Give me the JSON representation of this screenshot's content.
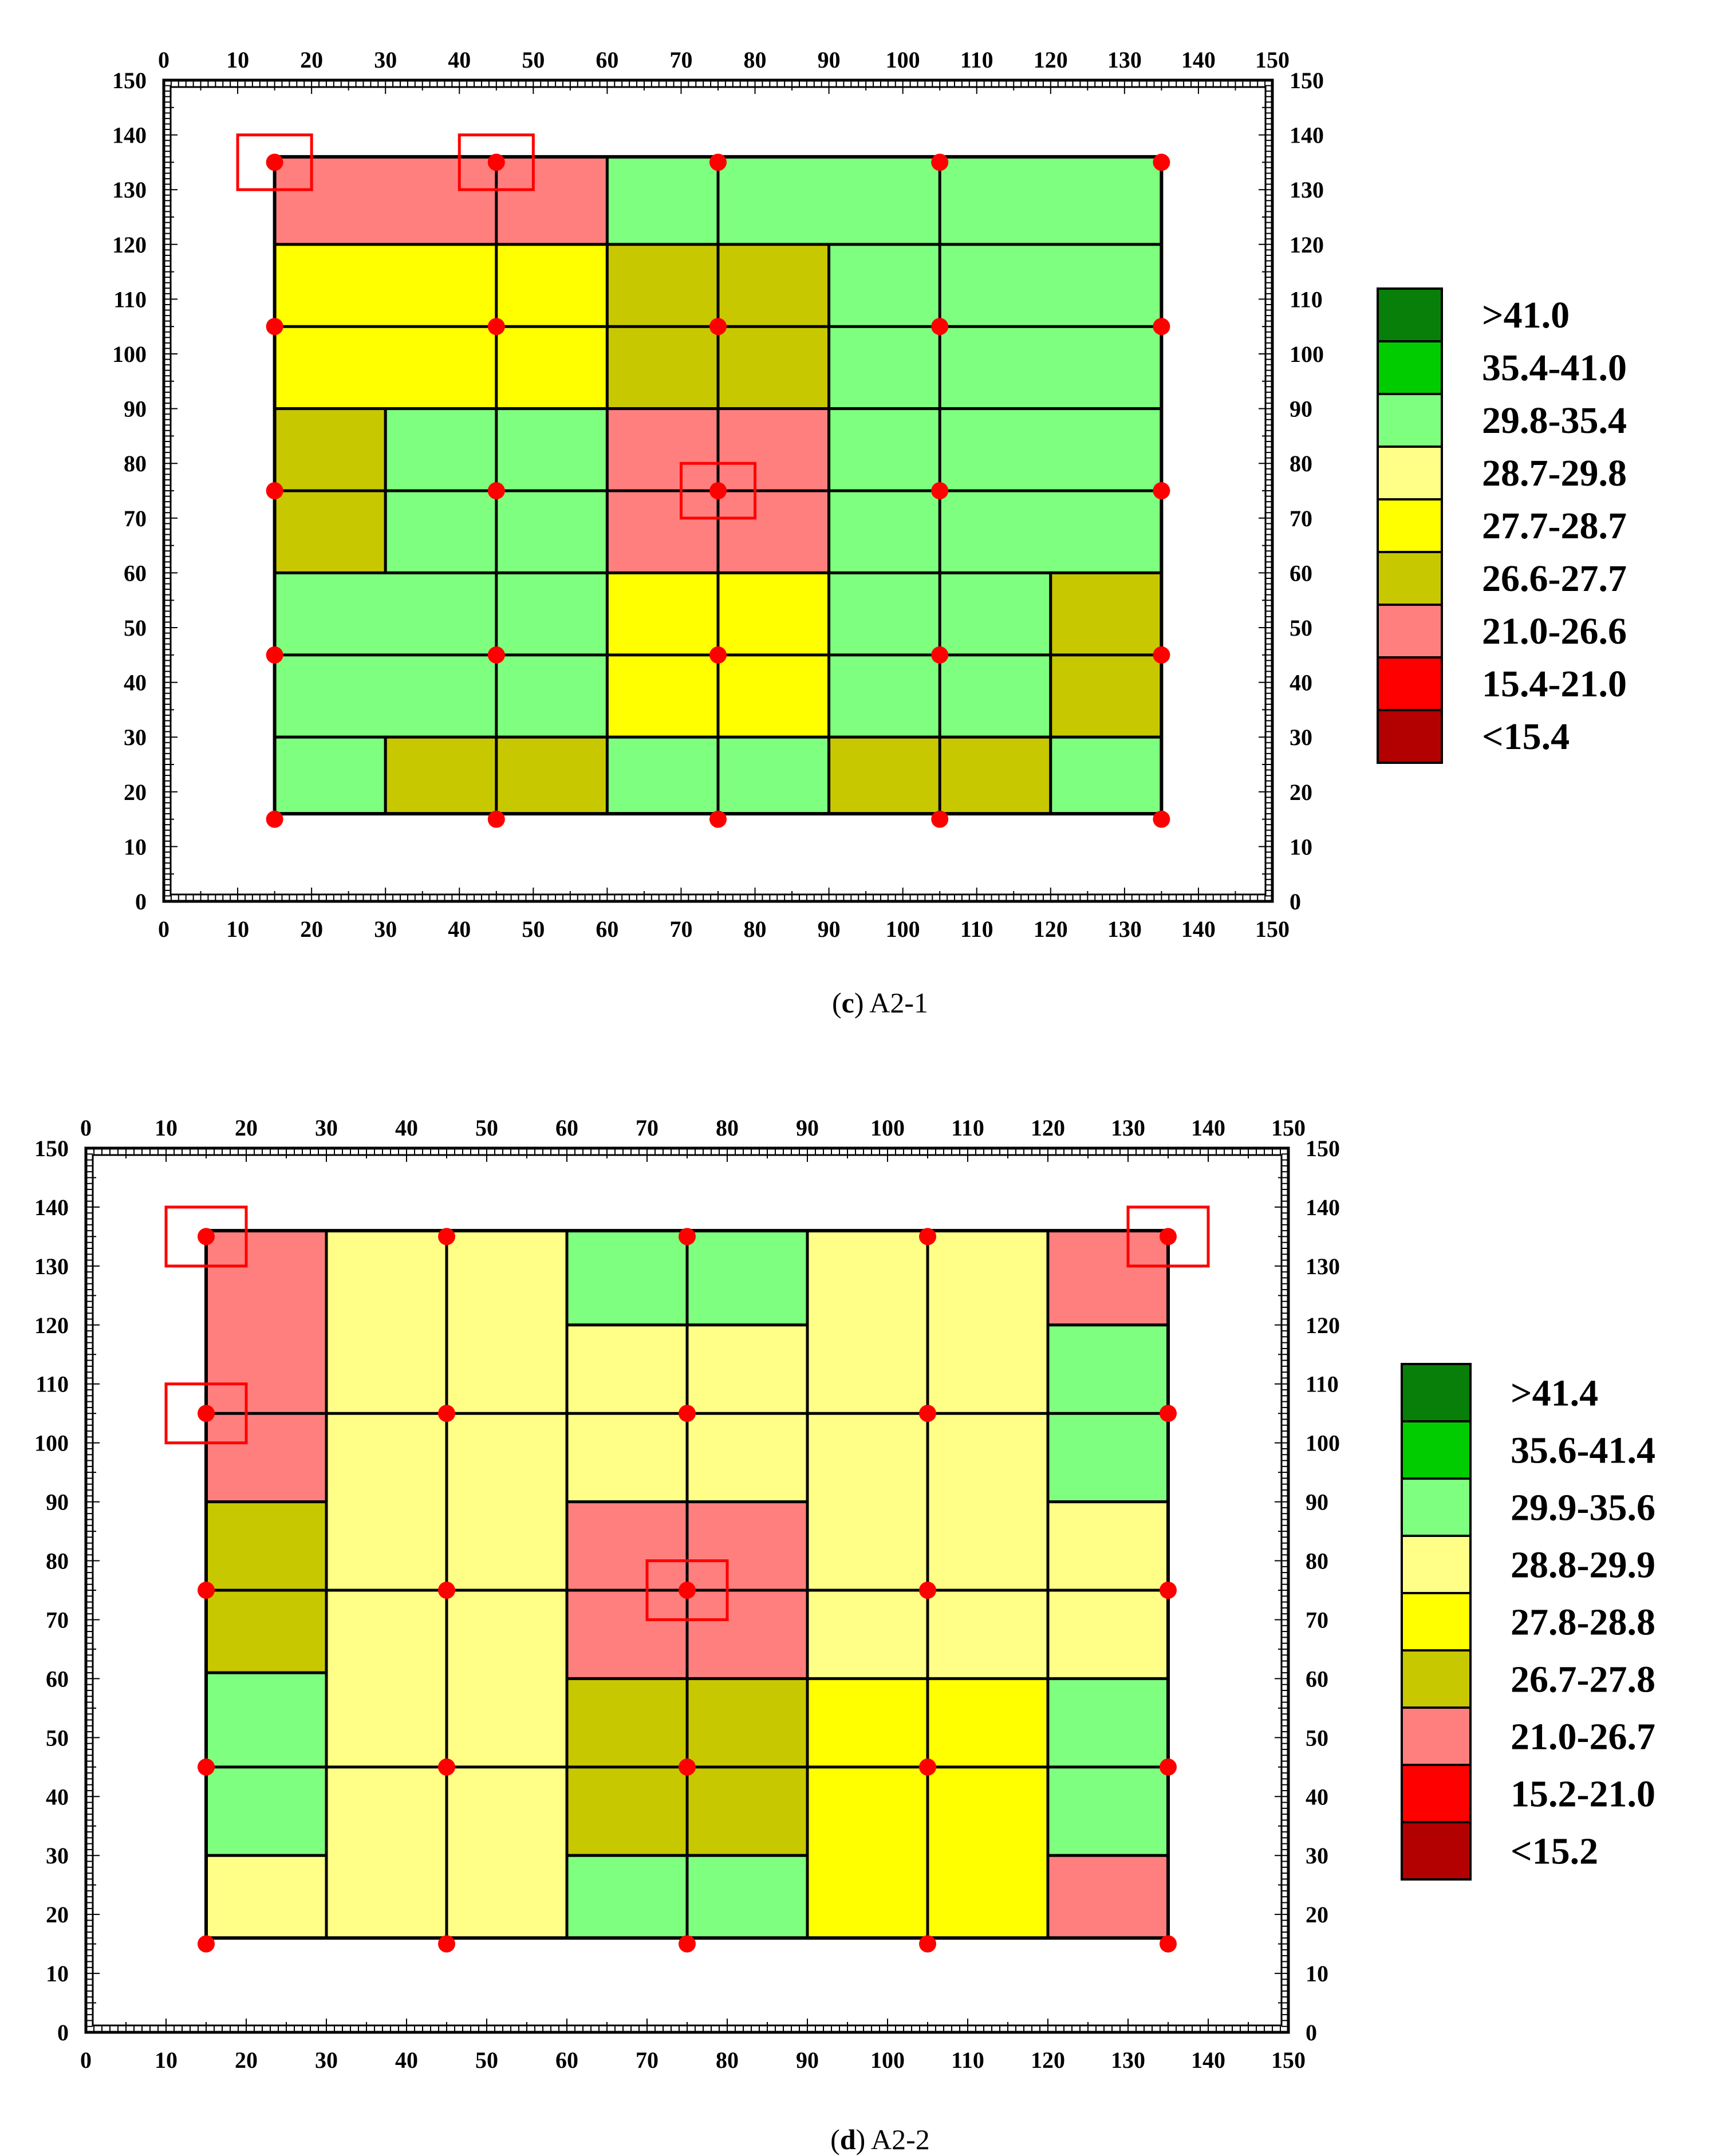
{
  "chart_data": [
    {
      "type": "heatmap",
      "panel_letter": "c",
      "caption": "A2-1",
      "xlim": [
        0,
        150
      ],
      "ylim": [
        0,
        150
      ],
      "ticks": [
        0,
        10,
        20,
        30,
        40,
        50,
        60,
        70,
        80,
        90,
        100,
        110,
        120,
        130,
        140,
        150
      ],
      "legend": [
        {
          "label": ">41.0",
          "color": "#087f08"
        },
        {
          "label": "35.4-41.0",
          "color": "#00cc00"
        },
        {
          "label": "29.8-35.4",
          "color": "#7fff7f"
        },
        {
          "label": "28.7-29.8",
          "color": "#ffff88"
        },
        {
          "label": "27.7-28.7",
          "color": "#ffff00"
        },
        {
          "label": "26.6-27.7",
          "color": "#c8c800"
        },
        {
          "label": "21.0-26.6",
          "color": "#ff7f7f"
        },
        {
          "label": "15.4-21.0",
          "color": "#ff0000"
        },
        {
          "label": "<15.4",
          "color": "#b30000"
        }
      ],
      "cells": [
        {
          "x0": 15,
          "x1": 60,
          "y0": 120,
          "y1": 136,
          "range": "21.0-26.6"
        },
        {
          "x0": 60,
          "x1": 135,
          "y0": 120,
          "y1": 136,
          "range": "29.8-35.4"
        },
        {
          "x0": 15,
          "x1": 60,
          "y0": 90,
          "y1": 120,
          "range": "27.7-28.7"
        },
        {
          "x0": 60,
          "x1": 90,
          "y0": 90,
          "y1": 120,
          "range": "26.6-27.7"
        },
        {
          "x0": 90,
          "x1": 135,
          "y0": 90,
          "y1": 120,
          "range": "29.8-35.4"
        },
        {
          "x0": 15,
          "x1": 30,
          "y0": 60,
          "y1": 90,
          "range": "26.6-27.7"
        },
        {
          "x0": 30,
          "x1": 60,
          "y0": 60,
          "y1": 90,
          "range": "29.8-35.4"
        },
        {
          "x0": 60,
          "x1": 90,
          "y0": 60,
          "y1": 90,
          "range": "21.0-26.6"
        },
        {
          "x0": 90,
          "x1": 135,
          "y0": 60,
          "y1": 90,
          "range": "29.8-35.4"
        },
        {
          "x0": 15,
          "x1": 60,
          "y0": 30,
          "y1": 60,
          "range": "29.8-35.4"
        },
        {
          "x0": 60,
          "x1": 90,
          "y0": 30,
          "y1": 60,
          "range": "27.7-28.7"
        },
        {
          "x0": 90,
          "x1": 120,
          "y0": 30,
          "y1": 60,
          "range": "29.8-35.4"
        },
        {
          "x0": 120,
          "x1": 135,
          "y0": 30,
          "y1": 60,
          "range": "26.6-27.7"
        },
        {
          "x0": 15,
          "x1": 30,
          "y0": 16,
          "y1": 30,
          "range": "29.8-35.4"
        },
        {
          "x0": 30,
          "x1": 60,
          "y0": 16,
          "y1": 30,
          "range": "26.6-27.7"
        },
        {
          "x0": 60,
          "x1": 90,
          "y0": 16,
          "y1": 30,
          "range": "29.8-35.4"
        },
        {
          "x0": 90,
          "x1": 120,
          "y0": 16,
          "y1": 30,
          "range": "26.6-27.7"
        },
        {
          "x0": 120,
          "x1": 135,
          "y0": 16,
          "y1": 30,
          "range": "29.8-35.4"
        }
      ],
      "grid_lines_x": [
        45,
        75,
        105
      ],
      "grid_lines_y": [
        45,
        75,
        105
      ],
      "points": [
        [
          15,
          135
        ],
        [
          45,
          135
        ],
        [
          75,
          135
        ],
        [
          105,
          135
        ],
        [
          135,
          135
        ],
        [
          15,
          105
        ],
        [
          45,
          105
        ],
        [
          75,
          105
        ],
        [
          105,
          105
        ],
        [
          135,
          105
        ],
        [
          15,
          75
        ],
        [
          45,
          75
        ],
        [
          75,
          75
        ],
        [
          105,
          75
        ],
        [
          135,
          75
        ],
        [
          15,
          45
        ],
        [
          45,
          45
        ],
        [
          75,
          45
        ],
        [
          105,
          45
        ],
        [
          135,
          45
        ],
        [
          15,
          15
        ],
        [
          45,
          15
        ],
        [
          75,
          15
        ],
        [
          105,
          15
        ],
        [
          135,
          15
        ]
      ],
      "marked_points": [
        [
          15,
          135
        ],
        [
          45,
          135
        ],
        [
          75,
          75
        ]
      ]
    },
    {
      "type": "heatmap",
      "panel_letter": "d",
      "caption": "A2-2",
      "xlim": [
        0,
        150
      ],
      "ylim": [
        0,
        150
      ],
      "ticks": [
        0,
        10,
        20,
        30,
        40,
        50,
        60,
        70,
        80,
        90,
        100,
        110,
        120,
        130,
        140,
        150
      ],
      "legend": [
        {
          "label": ">41.4",
          "color": "#087f08"
        },
        {
          "label": "35.6-41.4",
          "color": "#00cc00"
        },
        {
          "label": "29.9-35.6",
          "color": "#7fff7f"
        },
        {
          "label": "28.8-29.9",
          "color": "#ffff88"
        },
        {
          "label": "27.8-28.8",
          "color": "#ffff00"
        },
        {
          "label": "26.7-27.8",
          "color": "#c8c800"
        },
        {
          "label": "21.0-26.7",
          "color": "#ff7f7f"
        },
        {
          "label": "15.2-21.0",
          "color": "#ff0000"
        },
        {
          "label": "<15.2",
          "color": "#b30000"
        }
      ],
      "cells": [
        {
          "x0": 15,
          "x1": 30,
          "y0": 90,
          "y1": 136,
          "range": "21.0-26.7"
        },
        {
          "x0": 30,
          "x1": 60,
          "y0": 16,
          "y1": 136,
          "range": "28.8-29.9"
        },
        {
          "x0": 60,
          "x1": 90,
          "y0": 120,
          "y1": 136,
          "range": "29.9-35.6"
        },
        {
          "x0": 60,
          "x1": 90,
          "y0": 90,
          "y1": 120,
          "range": "28.8-29.9"
        },
        {
          "x0": 90,
          "x1": 120,
          "y0": 60,
          "y1": 136,
          "range": "28.8-29.9"
        },
        {
          "x0": 120,
          "x1": 135,
          "y0": 120,
          "y1": 136,
          "range": "21.0-26.7"
        },
        {
          "x0": 120,
          "x1": 135,
          "y0": 90,
          "y1": 120,
          "range": "29.9-35.6"
        },
        {
          "x0": 15,
          "x1": 30,
          "y0": 61,
          "y1": 90,
          "range": "26.7-27.8"
        },
        {
          "x0": 60,
          "x1": 90,
          "y0": 60,
          "y1": 90,
          "range": "21.0-26.7"
        },
        {
          "x0": 120,
          "x1": 135,
          "y0": 60,
          "y1": 90,
          "range": "28.8-29.9"
        },
        {
          "x0": 15,
          "x1": 30,
          "y0": 30,
          "y1": 61,
          "range": "29.9-35.6"
        },
        {
          "x0": 60,
          "x1": 90,
          "y0": 30,
          "y1": 60,
          "range": "26.7-27.8"
        },
        {
          "x0": 90,
          "x1": 120,
          "y0": 16,
          "y1": 60,
          "range": "27.8-28.8"
        },
        {
          "x0": 120,
          "x1": 135,
          "y0": 30,
          "y1": 60,
          "range": "29.9-35.6"
        },
        {
          "x0": 15,
          "x1": 30,
          "y0": 16,
          "y1": 30,
          "range": "28.8-29.9"
        },
        {
          "x0": 60,
          "x1": 90,
          "y0": 16,
          "y1": 30,
          "range": "29.9-35.6"
        },
        {
          "x0": 120,
          "x1": 135,
          "y0": 16,
          "y1": 30,
          "range": "21.0-26.7"
        }
      ],
      "grid_lines_x": [
        45,
        75,
        105
      ],
      "grid_lines_y": [
        45,
        75,
        105
      ],
      "points": [
        [
          15,
          135
        ],
        [
          45,
          135
        ],
        [
          75,
          135
        ],
        [
          105,
          135
        ],
        [
          135,
          135
        ],
        [
          15,
          105
        ],
        [
          45,
          105
        ],
        [
          75,
          105
        ],
        [
          105,
          105
        ],
        [
          135,
          105
        ],
        [
          15,
          75
        ],
        [
          45,
          75
        ],
        [
          75,
          75
        ],
        [
          105,
          75
        ],
        [
          135,
          75
        ],
        [
          15,
          45
        ],
        [
          45,
          45
        ],
        [
          75,
          45
        ],
        [
          105,
          45
        ],
        [
          135,
          45
        ],
        [
          15,
          15
        ],
        [
          45,
          15
        ],
        [
          75,
          15
        ],
        [
          105,
          15
        ],
        [
          135,
          15
        ]
      ],
      "marked_points": [
        [
          15,
          135
        ],
        [
          135,
          135
        ],
        [
          15,
          105
        ],
        [
          75,
          75
        ]
      ]
    }
  ]
}
